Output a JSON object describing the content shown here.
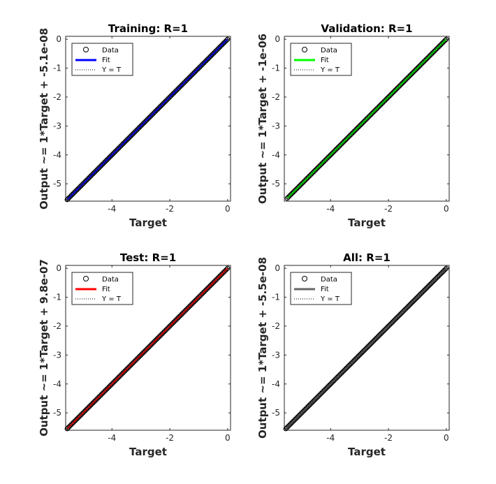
{
  "chart_data": [
    {
      "type": "scatter",
      "title": "Training: R=1",
      "xlabel": "Target",
      "ylabel": "Output ~= 1*Target + -5.1e-08",
      "xlim": [
        -5.6,
        0.1
      ],
      "ylim": [
        -5.6,
        0.1
      ],
      "xticks": [
        -4,
        -2,
        0
      ],
      "yticks": [
        -5,
        -4,
        -3,
        -2,
        -1,
        0
      ],
      "xtick_labels": [
        "-4",
        "-2",
        "0"
      ],
      "ytick_labels": [
        "-5",
        "-4",
        "-3",
        "-2",
        "-1",
        "0"
      ],
      "grid": false,
      "legend_position": "top-left",
      "fit_color": "#0000ff",
      "legend": [
        "Data",
        "Fit",
        "Y = T"
      ],
      "fit": {
        "slope": 1,
        "intercept": -5.1e-08
      },
      "data_range": [
        -5.55,
        0.0
      ]
    },
    {
      "type": "scatter",
      "title": "Validation: R=1",
      "xlabel": "Target",
      "ylabel": "Output ~= 1*Target + -1e-06",
      "xlim": [
        -5.6,
        0.1
      ],
      "ylim": [
        -5.6,
        0.1
      ],
      "xticks": [
        -4,
        -2,
        0
      ],
      "yticks": [
        -5,
        -4,
        -3,
        -2,
        -1,
        0
      ],
      "xtick_labels": [
        "-4",
        "-2",
        "0"
      ],
      "ytick_labels": [
        "-5",
        "-4",
        "-3",
        "-2",
        "-1",
        "0"
      ],
      "grid": false,
      "legend_position": "top-left",
      "fit_color": "#00ff00",
      "legend": [
        "Data",
        "Fit",
        "Y = T"
      ],
      "fit": {
        "slope": 1,
        "intercept": -1e-06
      },
      "data_range": [
        -5.5,
        0.0
      ]
    },
    {
      "type": "scatter",
      "title": "Test: R=1",
      "xlabel": "Target",
      "ylabel": "Output ~= 1*Target + 9.8e-07",
      "xlim": [
        -5.6,
        0.1
      ],
      "ylim": [
        -5.6,
        0.1
      ],
      "xticks": [
        -4,
        -2,
        0
      ],
      "yticks": [
        -5,
        -4,
        -3,
        -2,
        -1,
        0
      ],
      "xtick_labels": [
        "-4",
        "-2",
        "0"
      ],
      "ytick_labels": [
        "-5",
        "-4",
        "-3",
        "-2",
        "-1",
        "0"
      ],
      "grid": false,
      "legend_position": "top-left",
      "fit_color": "#ff0000",
      "legend": [
        "Data",
        "Fit",
        "Y = T"
      ],
      "fit": {
        "slope": 1,
        "intercept": 9.8e-07
      },
      "data_range": [
        -5.55,
        0.0
      ]
    },
    {
      "type": "scatter",
      "title": "All: R=1",
      "xlabel": "Target",
      "ylabel": "Output ~= 1*Target + -5.5e-08",
      "xlim": [
        -5.6,
        0.1
      ],
      "ylim": [
        -5.6,
        0.1
      ],
      "xticks": [
        -4,
        -2,
        0
      ],
      "yticks": [
        -5,
        -4,
        -3,
        -2,
        -1,
        0
      ],
      "xtick_labels": [
        "-4",
        "-2",
        "0"
      ],
      "ytick_labels": [
        "-5",
        "-4",
        "-3",
        "-2",
        "-1",
        "0"
      ],
      "grid": false,
      "legend_position": "top-left",
      "fit_color": "#666666",
      "legend": [
        "Data",
        "Fit",
        "Y = T"
      ],
      "fit": {
        "slope": 1,
        "intercept": -5.5e-08
      },
      "data_range": [
        -5.55,
        0.0
      ]
    }
  ]
}
